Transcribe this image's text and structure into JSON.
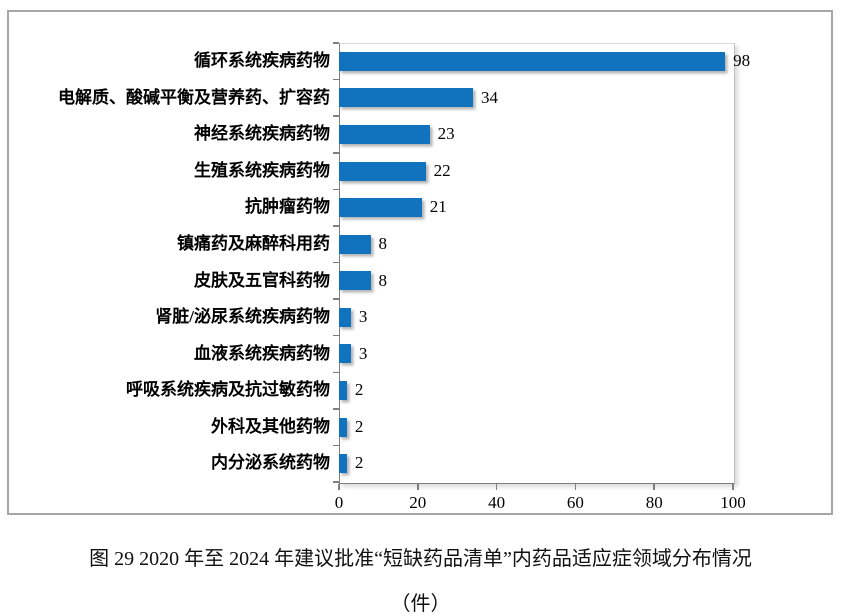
{
  "figure": {
    "caption_line1": "图 29  2020 年至 2024 年建议批准“短缺药品清单”内药品适应症领域分布情况",
    "caption_line2": "（件）"
  },
  "chart_data": {
    "type": "bar",
    "orientation": "horizontal",
    "title": "",
    "xlabel": "",
    "ylabel": "",
    "categories": [
      "循环系统疾病药物",
      "电解质、酸碱平衡及营养药、扩容药",
      "神经系统疾病药物",
      "生殖系统疾病药物",
      "抗肿瘤药物",
      "镇痛药及麻醉科用药",
      "皮肤及五官科药物",
      "肾脏/泌尿系统疾病药物",
      "血液系统疾病药物",
      "呼吸系统疾病及抗过敏药物",
      "外科及其他药物",
      "内分泌系统药物"
    ],
    "values": [
      98,
      34,
      23,
      22,
      21,
      8,
      8,
      3,
      3,
      2,
      2,
      2
    ],
    "xlim": [
      0,
      100
    ],
    "x_ticks": [
      0,
      20,
      40,
      60,
      80,
      100
    ],
    "grid": false,
    "legend": false,
    "value_labels_shown": true,
    "bar_color": "#1172BD",
    "axis_color": "#7f7f7f",
    "border_color": "#a6a6a6"
  }
}
